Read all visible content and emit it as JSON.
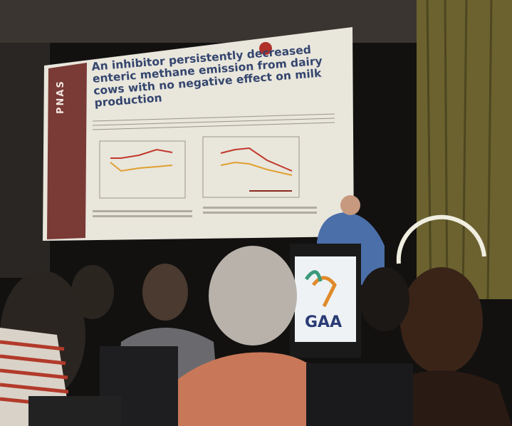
{
  "slide": {
    "journal": "PNAS",
    "title": "An inhibitor persistently decreased enteric methane emission from dairy cows with no negative effect on milk production"
  },
  "podium": {
    "logo": "GAA"
  }
}
